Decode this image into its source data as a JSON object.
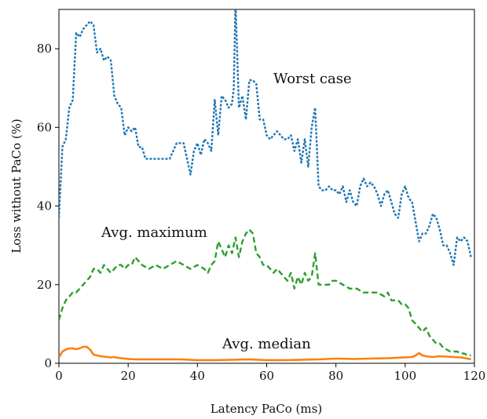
{
  "chart_data": {
    "type": "line",
    "title": "",
    "xlabel": "Latency PaCo (ms)",
    "ylabel": "Loss without PaCo (%)",
    "xlim": [
      0,
      120
    ],
    "ylim": [
      0,
      90
    ],
    "xticks": [
      0,
      20,
      40,
      60,
      80,
      100,
      120
    ],
    "yticks": [
      0,
      20,
      40,
      60,
      80
    ],
    "grid": false,
    "legend": "none",
    "series": [
      {
        "name": "Worst case",
        "color": "#1f77b4",
        "style": "dotted",
        "x": [
          0,
          1,
          2,
          3,
          4,
          5,
          6,
          7,
          8,
          9,
          10,
          11,
          12,
          13,
          14,
          15,
          16,
          17,
          18,
          19,
          20,
          21,
          22,
          23,
          24,
          25,
          26,
          28,
          30,
          32,
          34,
          36,
          37,
          38,
          39,
          40,
          41,
          42,
          43,
          44,
          45,
          46,
          47,
          48,
          49,
          50,
          50.5,
          51,
          52,
          53,
          54,
          55,
          56,
          57,
          58,
          59,
          60,
          61,
          62,
          63,
          64,
          65,
          66,
          67,
          68,
          69,
          70,
          71,
          72,
          73,
          74,
          75,
          76,
          77,
          78,
          79,
          80,
          81,
          82,
          83,
          84,
          85,
          86,
          87,
          88,
          89,
          90,
          91,
          92,
          93,
          94,
          95,
          96,
          97,
          98,
          99,
          100,
          101,
          102,
          103,
          104,
          105,
          106,
          107,
          108,
          109,
          110,
          111,
          112,
          113,
          114,
          115,
          116,
          117,
          118,
          119
        ],
        "values": [
          37,
          55,
          57,
          65,
          67,
          84,
          83,
          85,
          86,
          87,
          86,
          79,
          80,
          77,
          78,
          77,
          68,
          66,
          65,
          58,
          60,
          59,
          60,
          55,
          55,
          52,
          52,
          52,
          52,
          52,
          56,
          56,
          52,
          48,
          54,
          56,
          53,
          57,
          56,
          54,
          67,
          58,
          68,
          67,
          65,
          66,
          70,
          92,
          65,
          68,
          62,
          72,
          72,
          71,
          62,
          62,
          58,
          57,
          58,
          59,
          58,
          57,
          57,
          58,
          54,
          57,
          51,
          57,
          50,
          60,
          65,
          45,
          44,
          44,
          45,
          44,
          44,
          43,
          45,
          41,
          44,
          41,
          40,
          45,
          47,
          45,
          46,
          45,
          43,
          40,
          43,
          44,
          41,
          38,
          37,
          43,
          45,
          42,
          41,
          36,
          31,
          33,
          33,
          35,
          38,
          37,
          34,
          30,
          30,
          28,
          25,
          32,
          31,
          32,
          31,
          27
        ]
      },
      {
        "name": "Avg. maximum",
        "color": "#2ca02c",
        "style": "dashed",
        "x": [
          0,
          1,
          2,
          3,
          4,
          5,
          6,
          7,
          8,
          9,
          10,
          11,
          12,
          13,
          14,
          15,
          16,
          17,
          18,
          19,
          20,
          21,
          22,
          24,
          26,
          28,
          30,
          32,
          34,
          36,
          38,
          40,
          42,
          43,
          44,
          45,
          46,
          47,
          48,
          49,
          50,
          51,
          52,
          53,
          54,
          55,
          56,
          57,
          58,
          59,
          60,
          61,
          62,
          63,
          64,
          65,
          66,
          67,
          68,
          69,
          70,
          71,
          72,
          73,
          74,
          75,
          76,
          77,
          78,
          79,
          80,
          82,
          84,
          86,
          88,
          90,
          92,
          94,
          95,
          96,
          97,
          98,
          99,
          100,
          101,
          102,
          103,
          104,
          105,
          106,
          107,
          108,
          109,
          110,
          111,
          112,
          113,
          114,
          115,
          116,
          117,
          118,
          119
        ],
        "values": [
          11,
          14,
          16,
          17,
          18,
          18,
          19,
          20,
          21,
          22,
          24,
          24,
          23,
          25,
          24,
          23,
          24,
          25,
          25,
          24,
          25,
          25,
          27,
          25,
          24,
          25,
          24,
          25,
          26,
          25,
          24,
          25,
          24,
          23,
          25,
          26,
          31,
          29,
          27,
          30,
          28,
          32,
          27,
          31,
          33,
          34,
          33,
          28,
          27,
          25,
          25,
          24,
          23,
          24,
          23,
          22,
          21,
          23,
          19,
          22,
          20,
          23,
          21,
          22,
          28,
          20,
          20,
          20,
          20,
          21,
          21,
          20,
          19,
          19,
          18,
          18,
          18,
          17,
          18,
          16,
          16,
          16,
          15,
          15,
          14,
          11,
          10,
          9,
          8,
          9,
          7,
          6,
          5,
          5,
          4,
          3.5,
          3,
          3,
          3,
          2.5,
          2.5,
          2,
          2
        ]
      },
      {
        "name": "Avg. median",
        "color": "#ff7f0e",
        "style": "solid",
        "x": [
          0,
          1,
          2,
          3,
          4,
          5,
          6,
          7,
          8,
          9,
          10,
          11,
          12,
          13,
          14,
          15,
          16,
          17,
          18,
          20,
          22,
          25,
          30,
          35,
          40,
          45,
          50,
          55,
          60,
          65,
          70,
          75,
          80,
          85,
          90,
          95,
          100,
          102,
          103,
          104,
          105,
          106,
          108,
          110,
          112,
          114,
          116,
          118,
          119
        ],
        "values": [
          1.5,
          3,
          3.5,
          3.8,
          3.8,
          3.6,
          3.8,
          4.2,
          4.2,
          3.5,
          2.2,
          2.0,
          1.8,
          1.7,
          1.6,
          1.5,
          1.6,
          1.4,
          1.3,
          1.1,
          1.0,
          1.0,
          1.0,
          1.0,
          0.8,
          0.8,
          0.9,
          1.0,
          0.8,
          0.8,
          0.9,
          1.0,
          1.2,
          1.1,
          1.2,
          1.3,
          1.5,
          1.6,
          2.0,
          2.6,
          2.0,
          1.8,
          1.6,
          1.8,
          1.7,
          1.6,
          1.5,
          1.2,
          1.0
        ]
      }
    ],
    "annotations": [
      {
        "text": "Worst case",
        "series": "Worst case"
      },
      {
        "text": "Avg. maximum",
        "series": "Avg. maximum"
      },
      {
        "text": "Avg. median",
        "series": "Avg. median"
      }
    ]
  }
}
